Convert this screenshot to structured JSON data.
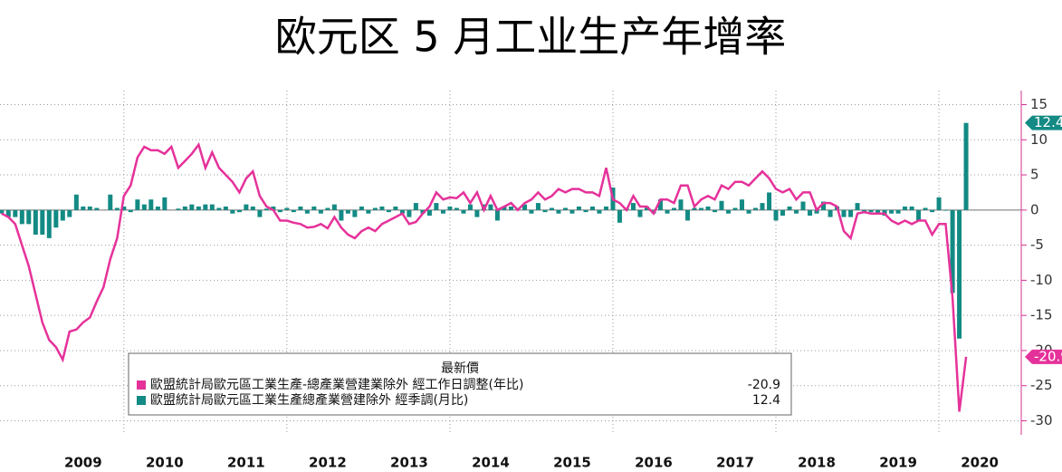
{
  "chart_data": {
    "type": "line_bar",
    "title": "欧元区 5 月工业生产年增率",
    "legend_title": "最新價",
    "x": [
      2008.5,
      2008.583,
      2008.667,
      2008.75,
      2008.833,
      2008.917,
      2009,
      2009.083,
      2009.167,
      2009.25,
      2009.333,
      2009.417,
      2009.5,
      2009.583,
      2009.667,
      2009.75,
      2009.833,
      2009.917,
      2010,
      2010.083,
      2010.167,
      2010.25,
      2010.333,
      2010.417,
      2010.5,
      2010.583,
      2010.667,
      2010.75,
      2010.833,
      2010.917,
      2011,
      2011.083,
      2011.167,
      2011.25,
      2011.333,
      2011.417,
      2011.5,
      2011.583,
      2011.667,
      2011.75,
      2011.833,
      2011.917,
      2012,
      2012.083,
      2012.167,
      2012.25,
      2012.333,
      2012.417,
      2012.5,
      2012.583,
      2012.667,
      2012.75,
      2012.833,
      2012.917,
      2013,
      2013.083,
      2013.167,
      2013.25,
      2013.333,
      2013.417,
      2013.5,
      2013.583,
      2013.667,
      2013.75,
      2013.833,
      2013.917,
      2014,
      2014.083,
      2014.167,
      2014.25,
      2014.333,
      2014.417,
      2014.5,
      2014.583,
      2014.667,
      2014.75,
      2014.833,
      2014.917,
      2015,
      2015.083,
      2015.167,
      2015.25,
      2015.333,
      2015.417,
      2015.5,
      2015.583,
      2015.667,
      2015.75,
      2015.833,
      2015.917,
      2016,
      2016.083,
      2016.167,
      2016.25,
      2016.333,
      2016.417,
      2016.5,
      2016.583,
      2016.667,
      2016.75,
      2016.833,
      2016.917,
      2017,
      2017.083,
      2017.167,
      2017.25,
      2017.333,
      2017.417,
      2017.5,
      2017.583,
      2017.667,
      2017.75,
      2017.833,
      2017.917,
      2018,
      2018.083,
      2018.167,
      2018.25,
      2018.333,
      2018.417,
      2018.5,
      2018.583,
      2018.667,
      2018.75,
      2018.833,
      2018.917,
      2019,
      2019.083,
      2019.167,
      2019.25,
      2019.333,
      2019.417,
      2019.5,
      2019.583,
      2019.667,
      2019.75,
      2019.833,
      2019.917,
      2020,
      2020.083,
      2020.167,
      2020.25,
      2020.333
    ],
    "series": [
      {
        "name": "歐盟統計局歐元區工業生產-總產業營建業除外 經工作日調整(年比)",
        "color": "#e5329a",
        "kind": "line",
        "values": [
          -0.5,
          -1,
          -2,
          -5,
          -8,
          -12,
          -16,
          -18.5,
          -19.5,
          -21.3,
          -17.3,
          -17,
          -16,
          -15.3,
          -13,
          -11,
          -7,
          -4,
          2,
          3.5,
          7.5,
          9,
          8.5,
          8.5,
          8,
          9,
          6,
          7,
          8,
          9.3,
          6,
          8.2,
          6,
          5,
          4,
          2.5,
          4.5,
          5.5,
          2,
          0.5,
          0,
          -1.5,
          -1.5,
          -1.8,
          -2,
          -2.5,
          -2.4,
          -2,
          -2.6,
          -1,
          -2.5,
          -3.5,
          -4,
          -3,
          -2.5,
          -3,
          -2,
          -1.5,
          -1,
          -0.5,
          -2,
          -1.7,
          -0.5,
          0.5,
          2.5,
          1.5,
          1.8,
          1.7,
          2.5,
          1,
          2.5,
          0,
          2,
          0,
          0.5,
          1,
          0,
          1,
          1.5,
          2.5,
          1.5,
          2,
          3,
          2.5,
          3,
          3,
          2.5,
          2.5,
          2,
          6,
          1.5,
          1,
          0,
          2,
          0.5,
          0.5,
          -0.5,
          1.5,
          1.5,
          1,
          3.5,
          3.5,
          0.5,
          1.5,
          2,
          1.5,
          3.5,
          3,
          4,
          4,
          3.5,
          4.5,
          5.5,
          4.5,
          3,
          2.5,
          3,
          1.5,
          2.5,
          2.5,
          0,
          1,
          1,
          0.5,
          -3,
          -4,
          -0.5,
          -0.3,
          -0.5,
          -0.5,
          -0.5,
          -1.5,
          -2,
          -1.5,
          -2,
          -1.5,
          -1.5,
          -3.5,
          -2,
          -2,
          -12.5,
          -28.7,
          -20.9
        ]
      },
      {
        "name": "歐盟統計局歐元區工業生產總產業營建除外 經季調(月比)",
        "color": "#138a84",
        "kind": "bar",
        "values": [
          -0.5,
          -1,
          -1,
          -2,
          -2,
          -3.5,
          -3.5,
          -4,
          -2.5,
          -1.5,
          -1,
          2.2,
          0.5,
          0.5,
          0.3,
          0,
          2.2,
          0.3,
          0.5,
          -0.3,
          1.5,
          0.8,
          1.5,
          0.5,
          1.8,
          0,
          0.2,
          0.5,
          0.8,
          0.5,
          0.8,
          0.8,
          0.3,
          0.5,
          -0.5,
          -0.3,
          0.8,
          0.5,
          -1,
          0.2,
          0.5,
          -0.3,
          0.3,
          -0.3,
          0.5,
          -0.5,
          0.5,
          -0.5,
          0.3,
          0.8,
          -1.5,
          -0.5,
          -1,
          0.5,
          -0.5,
          0.3,
          0.5,
          -0.3,
          0.5,
          -0.5,
          -1,
          1,
          -0.5,
          -0.8,
          1,
          -0.5,
          0.5,
          0.3,
          -0.5,
          0.8,
          -1,
          0.8,
          0.8,
          -1.5,
          0.5,
          0.5,
          0.3,
          0.8,
          -0.5,
          1,
          -0.3,
          0.3,
          -0.5,
          0.3,
          -0.5,
          0.5,
          -0.3,
          0.5,
          -0.5,
          0.5,
          3.2,
          -1.8,
          0.3,
          1,
          -1,
          0.5,
          -0.5,
          1.5,
          -0.5,
          0.3,
          1.5,
          -1.5,
          0.3,
          0.3,
          0.5,
          -0.3,
          1.3,
          -0.5,
          0.3,
          1.5,
          -0.5,
          0.3,
          1,
          2.5,
          -1.5,
          -0.8,
          0.5,
          -0.5,
          1.2,
          -0.8,
          -0.5,
          1.2,
          -1,
          0.5,
          -1,
          -1,
          1,
          -0.2,
          -0.3,
          -0.5,
          -0.8,
          -0.5,
          -0.5,
          0.5,
          0.5,
          -1.5,
          0.3,
          -0.3,
          1.8,
          -0.1,
          -11.8,
          -18.3,
          12.4
        ]
      }
    ],
    "xlim": [
      2008.48,
      2021.01
    ],
    "xticks": [
      {
        "value": 2009.5,
        "label": "2009"
      },
      {
        "value": 2010.5,
        "label": "2010"
      },
      {
        "value": 2011.5,
        "label": "2011"
      },
      {
        "value": 2012.5,
        "label": "2012"
      },
      {
        "value": 2013.5,
        "label": "2013"
      },
      {
        "value": 2014.5,
        "label": "2014"
      },
      {
        "value": 2015.5,
        "label": "2015"
      },
      {
        "value": 2016.5,
        "label": "2016"
      },
      {
        "value": 2017.5,
        "label": "2017"
      },
      {
        "value": 2018.5,
        "label": "2018"
      },
      {
        "value": 2019.5,
        "label": "2019"
      },
      {
        "value": 2020.5,
        "label": "2020"
      }
    ],
    "xgrid_ticks": [
      2010,
      2012,
      2014,
      2016,
      2018,
      2020
    ],
    "ylim": [
      -32,
      17
    ],
    "yticks": [
      15,
      10,
      5,
      0,
      -5,
      -10,
      -15,
      -20,
      -25,
      -30
    ],
    "grid": true
  }
}
